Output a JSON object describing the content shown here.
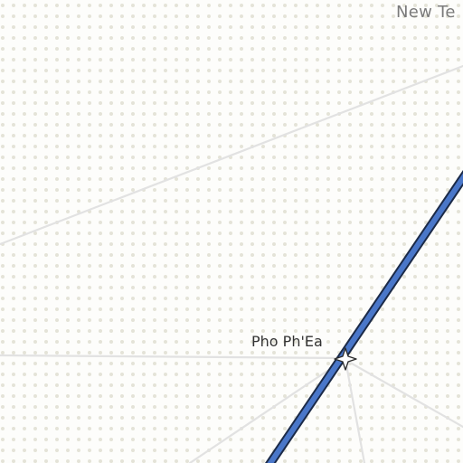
{
  "map": {
    "corner_label": "New Te",
    "station_label": "Pho Ph'Ea",
    "station_icon": "star-marker-icon",
    "colors": {
      "background": "#fdfdfb",
      "dot_pattern": "#e4e3d8",
      "road": "#e2e2e2",
      "transit_line_fill": "#4a77c9",
      "transit_line_outline": "#1b2a48",
      "station_marker_fill": "#ffffff",
      "station_marker_stroke": "#2a2a2a"
    }
  }
}
